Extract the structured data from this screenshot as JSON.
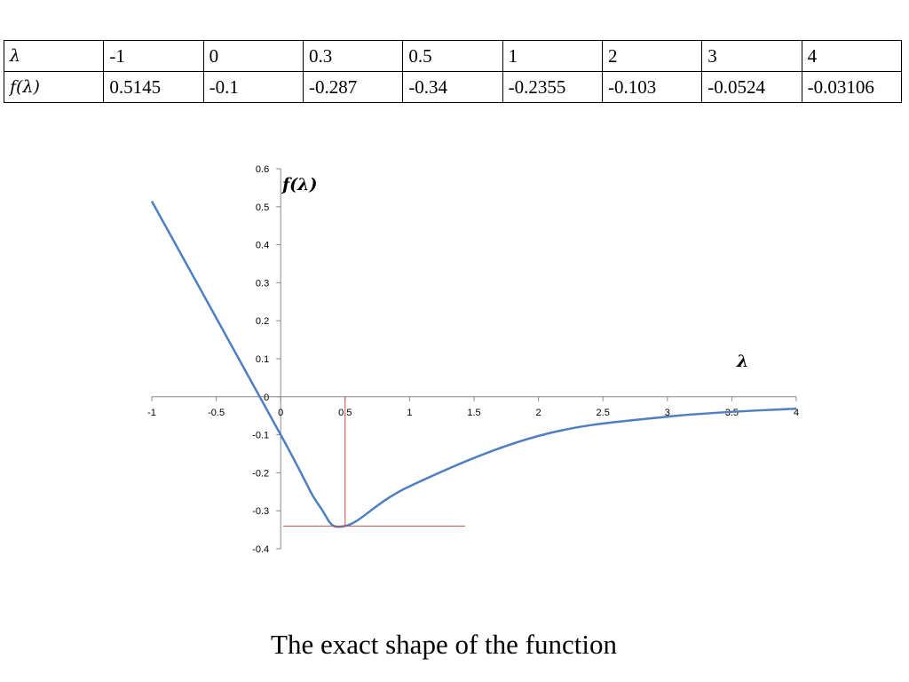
{
  "table": {
    "header": [
      "λ",
      "-1",
      "0",
      "0.3",
      "0.5",
      "1",
      "2",
      "3",
      "4"
    ],
    "row": [
      "𝑓(λ)",
      "0.5145",
      "-0.1",
      "-0.287",
      "-0.34",
      "-0.2355",
      "-0.103",
      "-0.0524",
      "-0.03106"
    ]
  },
  "chart_data": {
    "type": "line",
    "series": [
      {
        "x": [
          -1,
          0,
          0.3,
          0.5,
          1,
          2,
          3,
          4
        ],
        "y": [
          0.5145,
          -0.1,
          -0.287,
          -0.34,
          -0.2355,
          -0.103,
          -0.0524,
          -0.03106
        ]
      }
    ],
    "xlabel": "λ",
    "ylabel": "𝒇(𝝀)",
    "xlim": [
      -1,
      4
    ],
    "ylim": [
      -0.4,
      0.6
    ],
    "xticks": [
      "-1",
      "-0.5",
      "0",
      "0.5",
      "1",
      "1.5",
      "2",
      "2.5",
      "3",
      "3.5",
      "4"
    ],
    "yticks": [
      "0.6",
      "0.5",
      "0.4",
      "0.3",
      "0.2",
      "0.1",
      "0",
      "-0.1",
      "-0.2",
      "-0.3",
      "-0.4"
    ],
    "line_color": "#4f7fbf",
    "marker_line_color": "#c0504d",
    "minimum_marker": {
      "x": 0.5,
      "y": -0.34
    },
    "grid": false
  },
  "caption": "The exact shape of the function"
}
